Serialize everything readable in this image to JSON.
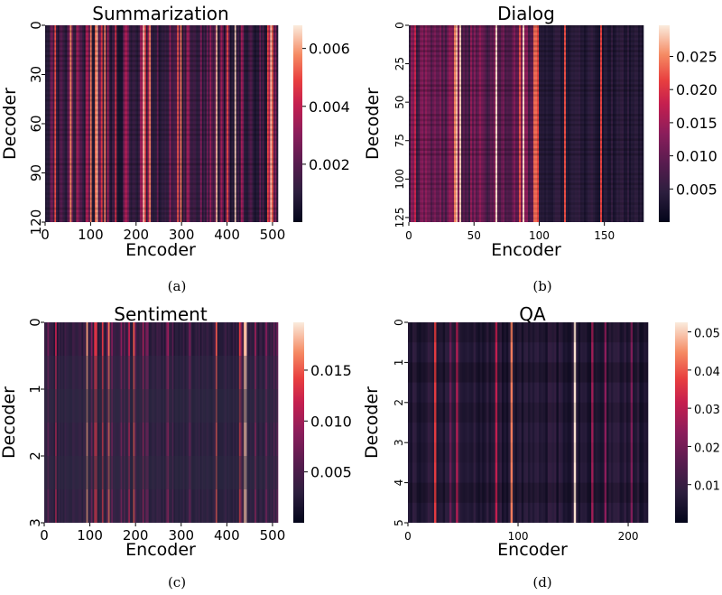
{
  "chart_data": [
    {
      "type": "heatmap",
      "title": "Summarization",
      "xlabel": "Encoder",
      "ylabel": "Decoder",
      "x_range": [
        0,
        512
      ],
      "y_range": [
        0,
        120
      ],
      "x_ticks": [
        {
          "v": 0,
          "label": "0"
        },
        {
          "v": 100,
          "label": "100"
        },
        {
          "v": 200,
          "label": "200"
        },
        {
          "v": 300,
          "label": "300"
        },
        {
          "v": 400,
          "label": "400"
        },
        {
          "v": 500,
          "label": "500"
        }
      ],
      "y_ticks": [
        {
          "v": 0,
          "label": "0"
        },
        {
          "v": 30,
          "label": "30"
        },
        {
          "v": 60,
          "label": "60"
        },
        {
          "v": 90,
          "label": "90"
        },
        {
          "v": 120,
          "label": "120"
        }
      ],
      "colorbar_range": [
        0,
        0.0068
      ],
      "colorbar_ticks": [
        {
          "v": 0.002,
          "label": "0.002"
        },
        {
          "v": 0.004,
          "label": "0.004"
        },
        {
          "v": 0.006,
          "label": "0.006"
        }
      ],
      "caption": "(a)"
    },
    {
      "type": "heatmap",
      "title": "Dialog",
      "xlabel": "Encoder",
      "ylabel": "Decoder",
      "x_range": [
        0,
        180
      ],
      "y_range": [
        0,
        128
      ],
      "x_ticks": [
        {
          "v": 0,
          "label": "0"
        },
        {
          "v": 50,
          "label": "50"
        },
        {
          "v": 100,
          "label": "100"
        },
        {
          "v": 150,
          "label": "150"
        }
      ],
      "y_ticks": [
        {
          "v": 0,
          "label": "0"
        },
        {
          "v": 25,
          "label": "25"
        },
        {
          "v": 50,
          "label": "50"
        },
        {
          "v": 75,
          "label": "75"
        },
        {
          "v": 100,
          "label": "100"
        },
        {
          "v": 125,
          "label": "125"
        }
      ],
      "colorbar_range": [
        0,
        0.0297
      ],
      "colorbar_ticks": [
        {
          "v": 0.005,
          "label": "0.005"
        },
        {
          "v": 0.01,
          "label": "0.010"
        },
        {
          "v": 0.015,
          "label": "0.015"
        },
        {
          "v": 0.02,
          "label": "0.020"
        },
        {
          "v": 0.025,
          "label": "0.025"
        }
      ],
      "caption": "(b)"
    },
    {
      "type": "heatmap",
      "title": "Sentiment",
      "xlabel": "Encoder",
      "ylabel": "Decoder",
      "x_range": [
        0,
        512
      ],
      "y_range": [
        0,
        3
      ],
      "x_ticks": [
        {
          "v": 0,
          "label": "0"
        },
        {
          "v": 100,
          "label": "100"
        },
        {
          "v": 200,
          "label": "200"
        },
        {
          "v": 300,
          "label": "300"
        },
        {
          "v": 400,
          "label": "400"
        },
        {
          "v": 500,
          "label": "500"
        }
      ],
      "y_ticks": [
        {
          "v": 0,
          "label": "0"
        },
        {
          "v": 1,
          "label": "1"
        },
        {
          "v": 2,
          "label": "2"
        },
        {
          "v": 3,
          "label": "3"
        }
      ],
      "colorbar_range": [
        0,
        0.0197
      ],
      "colorbar_ticks": [
        {
          "v": 0.005,
          "label": "0.005"
        },
        {
          "v": 0.01,
          "label": "0.010"
        },
        {
          "v": 0.015,
          "label": "0.015"
        }
      ],
      "caption": "(c)"
    },
    {
      "type": "heatmap",
      "title": "QA",
      "xlabel": "Encoder",
      "ylabel": "Decoder",
      "x_range": [
        0,
        218
      ],
      "y_range": [
        0,
        5
      ],
      "x_ticks": [
        {
          "v": 0,
          "label": "0"
        },
        {
          "v": 100,
          "label": "100"
        },
        {
          "v": 200,
          "label": "200"
        }
      ],
      "y_ticks": [
        {
          "v": 0,
          "label": "0"
        },
        {
          "v": 1,
          "label": "1"
        },
        {
          "v": 2,
          "label": "2"
        },
        {
          "v": 3,
          "label": "3"
        },
        {
          "v": 4,
          "label": "4"
        },
        {
          "v": 5,
          "label": "5"
        }
      ],
      "colorbar_range": [
        0,
        0.0525
      ],
      "colorbar_ticks": [
        {
          "v": 0.01,
          "label": "0.01"
        },
        {
          "v": 0.02,
          "label": "0.02"
        },
        {
          "v": 0.03,
          "label": "0.03"
        },
        {
          "v": 0.04,
          "label": "0.04"
        },
        {
          "v": 0.05,
          "label": "0.05"
        }
      ],
      "caption": "(d)"
    }
  ]
}
